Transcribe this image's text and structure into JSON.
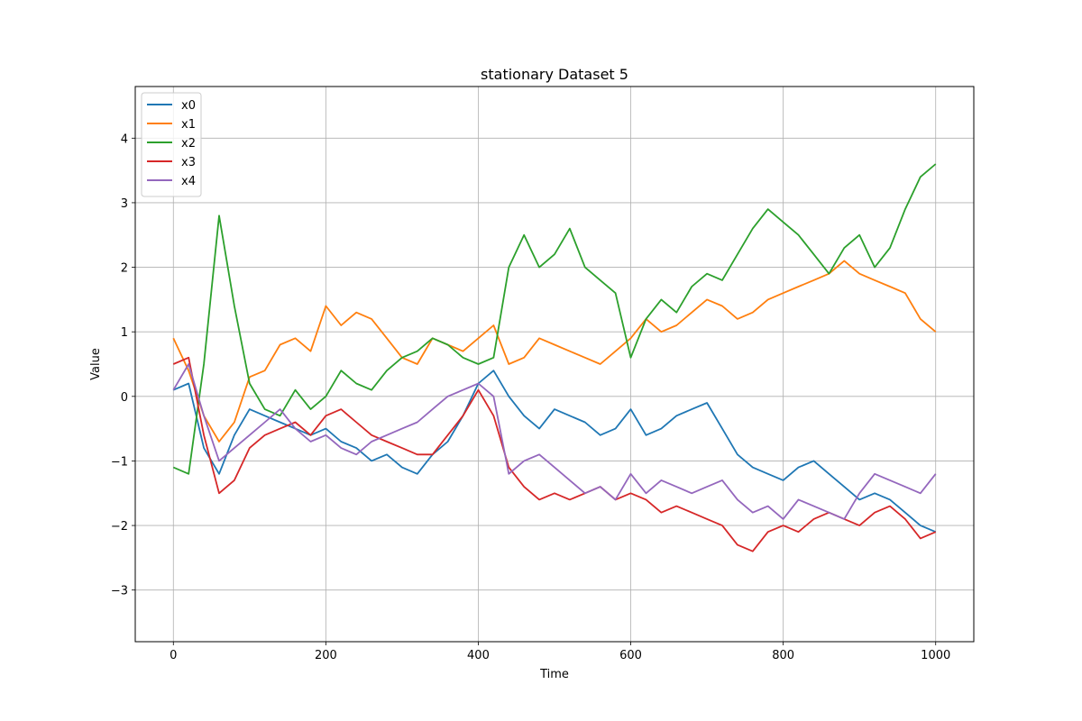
{
  "chart_data": {
    "type": "line",
    "title": "stationary Dataset 5",
    "xlabel": "Time",
    "ylabel": "Value",
    "xlim": [
      -50,
      1050
    ],
    "ylim": [
      -3.8,
      4.8
    ],
    "xticks": [
      0,
      200,
      400,
      600,
      800,
      1000
    ],
    "xtick_labels": [
      "0",
      "200",
      "400",
      "600",
      "800",
      "1000"
    ],
    "yticks": [
      -3,
      -2,
      -1,
      0,
      1,
      2,
      3,
      4
    ],
    "ytick_labels": [
      "−3",
      "−2",
      "−1",
      "0",
      "1",
      "2",
      "3",
      "4"
    ],
    "grid": true,
    "legend_position": "top-left",
    "x": [
      0,
      20,
      40,
      60,
      80,
      100,
      120,
      140,
      160,
      180,
      200,
      220,
      240,
      260,
      280,
      300,
      320,
      340,
      360,
      380,
      400,
      420,
      440,
      460,
      480,
      500,
      520,
      540,
      560,
      580,
      600,
      620,
      640,
      660,
      680,
      700,
      720,
      740,
      760,
      780,
      800,
      820,
      840,
      860,
      880,
      900,
      920,
      940,
      960,
      980,
      1000
    ],
    "series": [
      {
        "name": "x0",
        "color": "#1f77b4",
        "values": [
          0.1,
          0.2,
          -0.8,
          -1.2,
          -0.6,
          -0.2,
          -0.3,
          -0.4,
          -0.5,
          -0.6,
          -0.5,
          -0.7,
          -0.8,
          -1.0,
          -0.9,
          -1.1,
          -1.2,
          -0.9,
          -0.7,
          -0.3,
          0.2,
          0.4,
          0.0,
          -0.3,
          -0.5,
          -0.2,
          -0.3,
          -0.4,
          -0.6,
          -0.5,
          -0.2,
          -0.6,
          -0.5,
          -0.3,
          -0.2,
          -0.1,
          -0.5,
          -0.9,
          -1.1,
          -1.2,
          -1.3,
          -1.1,
          -1.0,
          -1.2,
          -1.4,
          -1.6,
          -1.5,
          -1.6,
          -1.8,
          -2.0,
          -2.1
        ]
      },
      {
        "name": "x1",
        "color": "#ff7f0e",
        "values": [
          0.9,
          0.4,
          -0.3,
          -0.7,
          -0.4,
          0.3,
          0.4,
          0.8,
          0.9,
          0.7,
          1.4,
          1.1,
          1.3,
          1.2,
          0.9,
          0.6,
          0.5,
          0.9,
          0.8,
          0.7,
          0.9,
          1.1,
          0.5,
          0.6,
          0.9,
          0.8,
          0.7,
          0.6,
          0.5,
          0.7,
          0.9,
          1.2,
          1.0,
          1.1,
          1.3,
          1.5,
          1.4,
          1.2,
          1.3,
          1.5,
          1.6,
          1.7,
          1.8,
          1.9,
          2.1,
          1.9,
          1.8,
          1.7,
          1.6,
          1.2,
          1.0
        ]
      },
      {
        "name": "x2",
        "color": "#2ca02c",
        "values": [
          -1.1,
          -1.2,
          0.5,
          2.8,
          1.4,
          0.2,
          -0.2,
          -0.3,
          0.1,
          -0.2,
          0.0,
          0.4,
          0.2,
          0.1,
          0.4,
          0.6,
          0.7,
          0.9,
          0.8,
          0.6,
          0.5,
          0.6,
          2.0,
          2.5,
          2.0,
          2.2,
          2.6,
          2.0,
          1.8,
          1.6,
          0.6,
          1.2,
          1.5,
          1.3,
          1.7,
          1.9,
          1.8,
          2.2,
          2.6,
          2.9,
          2.7,
          2.5,
          2.2,
          1.9,
          2.3,
          2.5,
          2.0,
          2.3,
          2.9,
          3.4,
          3.6
        ]
      },
      {
        "name": "x3",
        "color": "#d62728",
        "values": [
          0.5,
          0.6,
          -0.6,
          -1.5,
          -1.3,
          -0.8,
          -0.6,
          -0.5,
          -0.4,
          -0.6,
          -0.3,
          -0.2,
          -0.4,
          -0.6,
          -0.7,
          -0.8,
          -0.9,
          -0.9,
          -0.6,
          -0.3,
          0.1,
          -0.3,
          -1.1,
          -1.4,
          -1.6,
          -1.5,
          -1.6,
          -1.5,
          -1.4,
          -1.6,
          -1.5,
          -1.6,
          -1.8,
          -1.7,
          -1.8,
          -1.9,
          -2.0,
          -2.3,
          -2.4,
          -2.1,
          -2.0,
          -2.1,
          -1.9,
          -1.8,
          -1.9,
          -2.0,
          -1.8,
          -1.7,
          -1.9,
          -2.2,
          -2.1
        ]
      },
      {
        "name": "x4",
        "color": "#9467bd",
        "values": [
          0.1,
          0.5,
          -0.3,
          -1.0,
          -0.8,
          -0.6,
          -0.4,
          -0.2,
          -0.5,
          -0.7,
          -0.6,
          -0.8,
          -0.9,
          -0.7,
          -0.6,
          -0.5,
          -0.4,
          -0.2,
          0.0,
          0.1,
          0.2,
          0.0,
          -1.2,
          -1.0,
          -0.9,
          -1.1,
          -1.3,
          -1.5,
          -1.4,
          -1.6,
          -1.2,
          -1.5,
          -1.3,
          -1.4,
          -1.5,
          -1.4,
          -1.3,
          -1.6,
          -1.8,
          -1.7,
          -1.9,
          -1.6,
          -1.7,
          -1.8,
          -1.9,
          -1.5,
          -1.2,
          -1.3,
          -1.4,
          -1.5,
          -1.2
        ]
      }
    ]
  }
}
